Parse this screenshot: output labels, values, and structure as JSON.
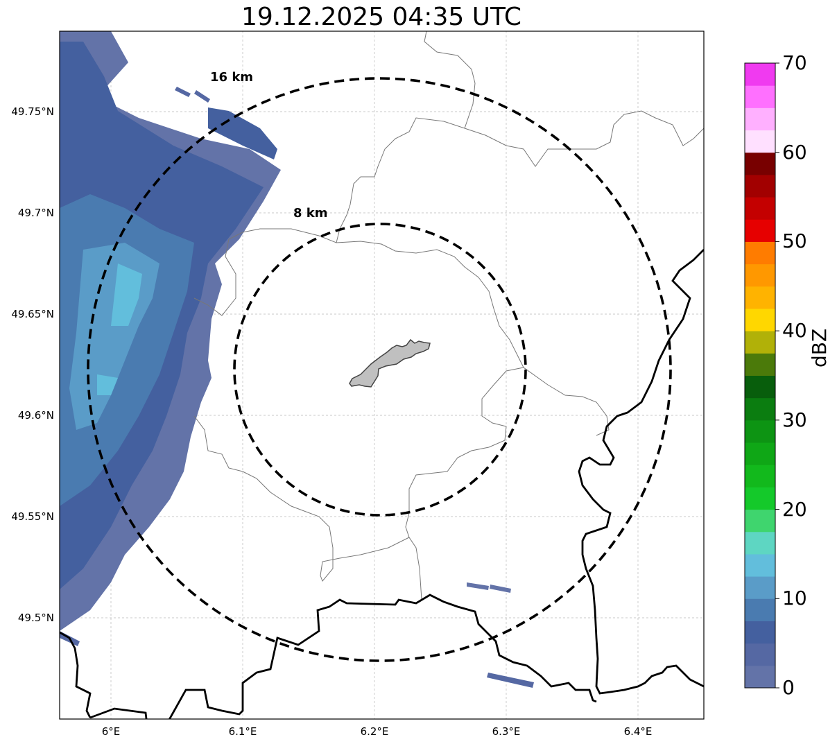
{
  "title": "19.12.2025 04:35 UTC",
  "lat_ticks": [
    "49.75°N",
    "49.7°N",
    "49.65°N",
    "49.6°N",
    "49.55°N",
    "49.5°N"
  ],
  "lon_ticks": [
    "6°E",
    "6.1°E",
    "6.2°E",
    "6.3°E",
    "6.4°E"
  ],
  "range_rings": [
    {
      "label": "16 km",
      "radius_km": 16
    },
    {
      "label": "8 km",
      "radius_km": 8
    }
  ],
  "colorbar": {
    "label": "dBZ",
    "ticks": [
      "0",
      "10",
      "20",
      "30",
      "40",
      "50",
      "60",
      "70"
    ],
    "min": 0,
    "max": 70,
    "step": 2.5,
    "colors": [
      "#6373a8",
      "#5568a3",
      "#44609f",
      "#4a7bb0",
      "#5a9cc8",
      "#62bedc",
      "#5ed6c2",
      "#3fd56e",
      "#14c92a",
      "#12b91c",
      "#0fa716",
      "#0d9413",
      "#0b7d10",
      "#085e0c",
      "#4b7a0a",
      "#b1b108",
      "#ffd700",
      "#ffb300",
      "#ff9800",
      "#ff7c00",
      "#e60000",
      "#c40000",
      "#a20000",
      "#780000",
      "#ffe0ff",
      "#ffb0ff",
      "#ff70ff",
      "#f03af0"
    ]
  },
  "map": {
    "lon_range": [
      5.96,
      6.45
    ],
    "lat_range": [
      49.45,
      49.79
    ],
    "grid": true,
    "radar_site_shape": "gray polygon near center",
    "echo_color_range_dbz": [
      0,
      17
    ]
  }
}
